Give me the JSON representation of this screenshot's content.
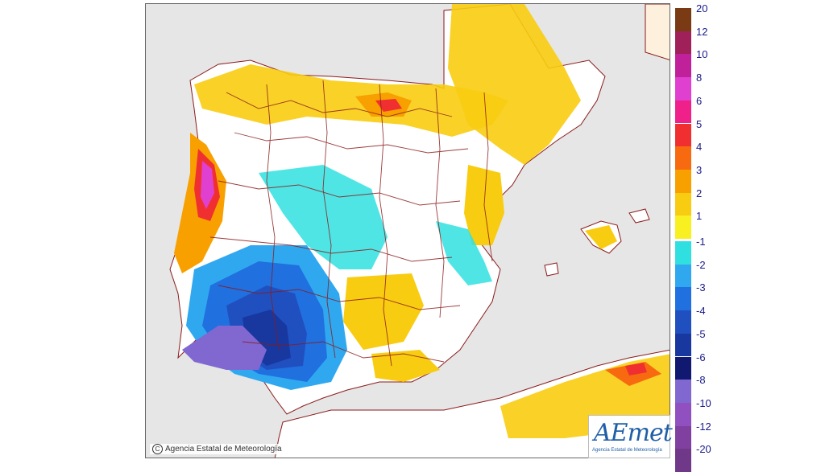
{
  "copyright": {
    "symbol": "C",
    "text": "Agencia Estatal de Meteorología"
  },
  "logo": {
    "word": "AEmet",
    "subtitle": "Agencia Estatal de Meteorología"
  },
  "legend": {
    "positive": [
      {
        "label": "20",
        "color": "#7a3b14"
      },
      {
        "label": "12",
        "color": "#a0205a"
      },
      {
        "label": "10",
        "color": "#c0209a"
      },
      {
        "label": "8",
        "color": "#e040d0"
      },
      {
        "label": "6",
        "color": "#f0208a"
      },
      {
        "label": "5",
        "color": "#f03030"
      },
      {
        "label": "4",
        "color": "#f86a10"
      },
      {
        "label": "3",
        "color": "#f8a000"
      },
      {
        "label": "2",
        "color": "#f8cc10"
      },
      {
        "label": "1",
        "color": "#f8f020"
      }
    ],
    "negative": [
      {
        "label": "-1",
        "color": "#30e0e0"
      },
      {
        "label": "-2",
        "color": "#30a8f0"
      },
      {
        "label": "-3",
        "color": "#2070e0"
      },
      {
        "label": "-4",
        "color": "#2050c0"
      },
      {
        "label": "-5",
        "color": "#1838a0"
      },
      {
        "label": "-6",
        "color": "#101870"
      },
      {
        "label": "-8",
        "color": "#8068d0"
      },
      {
        "label": "-10",
        "color": "#9050c0"
      },
      {
        "label": "-12",
        "color": "#8040a0"
      },
      {
        "label": "-20",
        "color": "#703888"
      }
    ]
  },
  "colors": {
    "sea": "#e6e6e6",
    "land": "#ffffff",
    "borders": "#8b1a1a"
  }
}
